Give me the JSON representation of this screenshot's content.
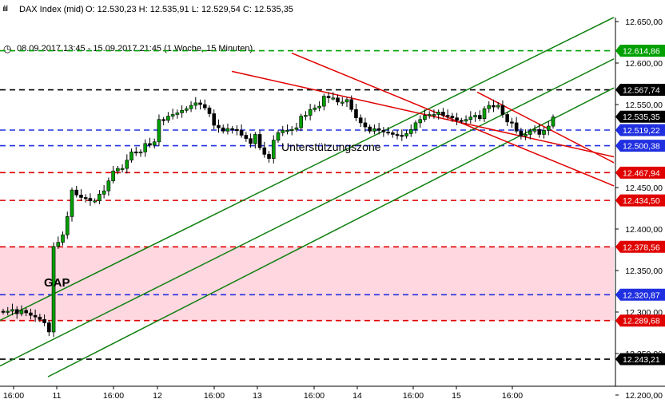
{
  "header": {
    "instrument": "DAX Index (mid)",
    "ohlc": "O: 12.530,23  H: 12.535,91  L: 12.529,54  C: 12.535,35",
    "range": "08.09.2017 13:45 - 15.09.2017 21:45  (1 Woche, 15 Minuten)"
  },
  "colors": {
    "up_candle": "#00a000",
    "down_candle": "#000000",
    "support": "#e00000",
    "resistance_black": "#000000",
    "blue": "#2030e0",
    "green_level": "#00a000",
    "trend_green": "#108010",
    "trend_red": "#e00000",
    "gap_zone": "#ffd7e0"
  },
  "chart_data": {
    "type": "candlestick",
    "title": "",
    "xlabel": "",
    "ylabel": "",
    "ylim": [
      12200,
      12665
    ],
    "x_ticks": [
      "16:00",
      "11",
      "16:00",
      "12",
      "16:00",
      "13",
      "16:00",
      "14",
      "16:00",
      "15",
      "16:00"
    ],
    "y_ticks": [
      "12.650,00",
      "12.600,00",
      "12.550,00",
      "12.450,00",
      "12.400,00",
      "12.350,00",
      "12.300,00",
      "12.250,00",
      "12.200,00"
    ],
    "last_price": {
      "value": 12535.35,
      "label": "12.535,35"
    },
    "levels": [
      {
        "value": 12614.86,
        "label": "12.614,86",
        "kind": "resistance",
        "color": "#00a000"
      },
      {
        "value": 12567.74,
        "label": "12.567,74",
        "kind": "resistance",
        "color": "#000000"
      },
      {
        "value": 12519.22,
        "label": "12.519,22",
        "kind": "level",
        "color": "#2030e0"
      },
      {
        "value": 12500.38,
        "label": "12.500,38",
        "kind": "level",
        "color": "#2030e0"
      },
      {
        "value": 12467.94,
        "label": "12.467,94",
        "kind": "support",
        "color": "#e00000"
      },
      {
        "value": 12434.5,
        "label": "12.434,50",
        "kind": "support",
        "color": "#e00000"
      },
      {
        "value": 12378.56,
        "label": "12.378,56",
        "kind": "support",
        "color": "#e00000"
      },
      {
        "value": 12320.87,
        "label": "12.320,87",
        "kind": "level",
        "color": "#2030e0"
      },
      {
        "value": 12289.68,
        "label": "12.289,68",
        "kind": "support",
        "color": "#e00000"
      },
      {
        "value": 12243.21,
        "label": "12.243,21",
        "kind": "support",
        "color": "#000000"
      }
    ],
    "gap_zone": {
      "from": 12289.68,
      "to": 12378.56,
      "label": "GAP"
    },
    "annotation": "Unterstützungszone",
    "series_close": [
      12300,
      12301,
      12303,
      12298,
      12302,
      12299,
      12296,
      12294,
      12291,
      12287,
      12276,
      12379,
      12384,
      12393,
      12415,
      12447,
      12441,
      12438,
      12437,
      12434,
      12434,
      12442,
      12446,
      12458,
      12470,
      12473,
      12473,
      12483,
      12493,
      12492,
      12493,
      12503,
      12501,
      12505,
      12532,
      12531,
      12536,
      12538,
      12540,
      12543,
      12545,
      12549,
      12552,
      12550,
      12546,
      12539,
      12525,
      12522,
      12518,
      12521,
      12520,
      12519,
      12513,
      12509,
      12503,
      12514,
      12498,
      12490,
      12485,
      12507,
      12516,
      12519,
      12519,
      12520,
      12522,
      12536,
      12537,
      12544,
      12546,
      12548,
      12560,
      12558,
      12558,
      12553,
      12553,
      12556,
      12544,
      12534,
      12528,
      12523,
      12518,
      12521,
      12519,
      12517,
      12516,
      12514,
      12513,
      12512,
      12515,
      12520,
      12528,
      12532,
      12537,
      12538,
      12538,
      12541,
      12537,
      12536,
      12534,
      12531,
      12530,
      12532,
      12535,
      12537,
      12533,
      12545,
      12549,
      12547,
      12549,
      12538,
      12529,
      12528,
      12518,
      12512,
      12514,
      12518,
      12520,
      12514,
      12519,
      12524,
      12535
    ]
  }
}
